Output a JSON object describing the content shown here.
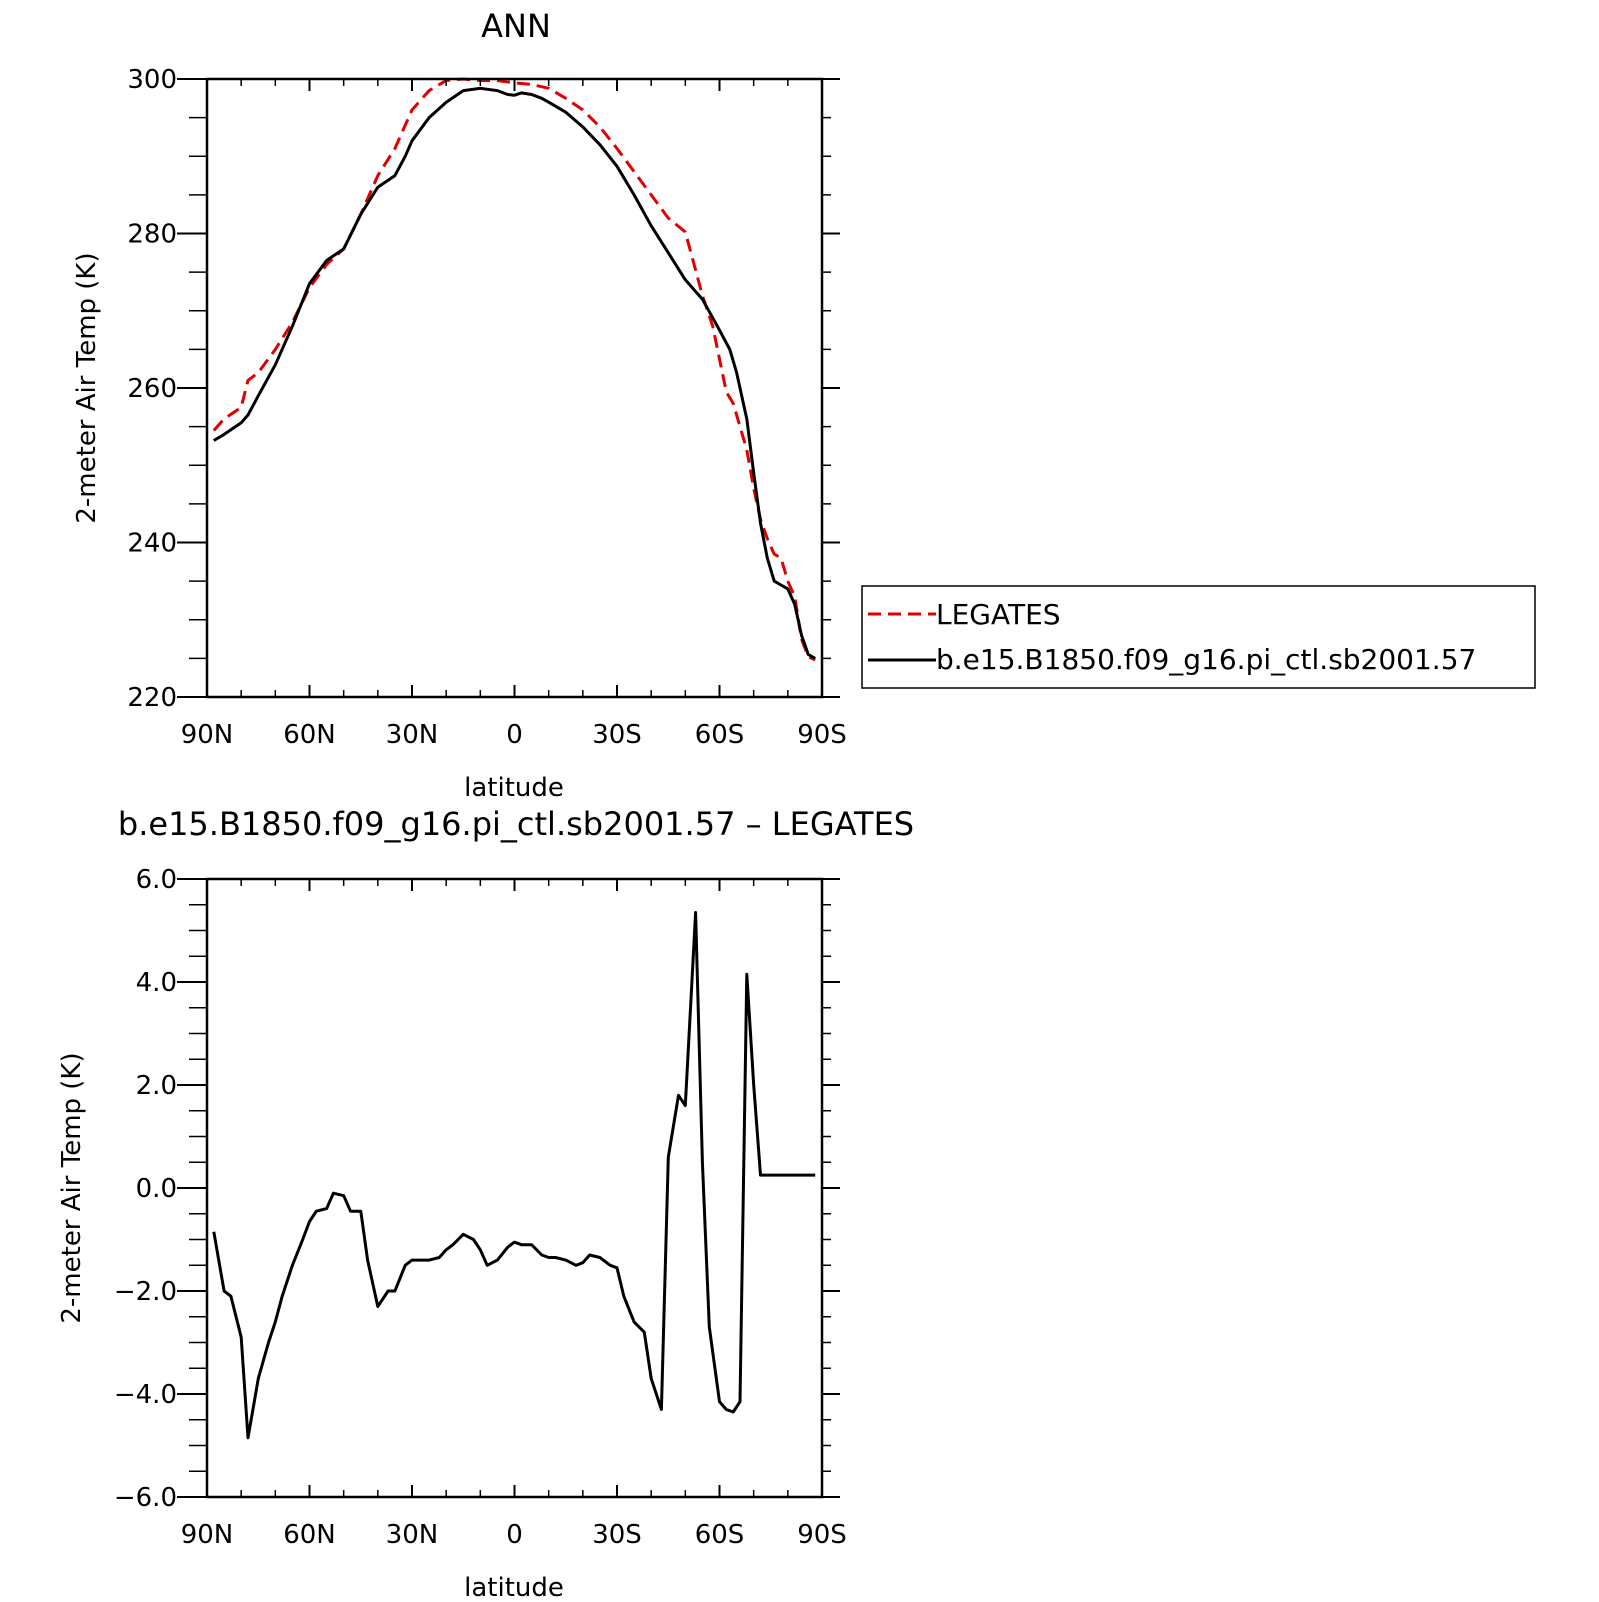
{
  "chart_data": [
    {
      "type": "line",
      "title": "ANN",
      "xlabel": "latitude",
      "ylabel": "2-meter Air Temp (K)",
      "xlim": [
        90,
        -90
      ],
      "ylim": [
        220,
        300
      ],
      "xticks": [
        90,
        60,
        30,
        0,
        -30,
        -60,
        -90
      ],
      "xtick_labels": [
        "90N",
        "60N",
        "30N",
        "0",
        "30S",
        "60S",
        "90S"
      ],
      "yticks": [
        220,
        240,
        260,
        280,
        300
      ],
      "ytick_labels": [
        "220",
        "240",
        "260",
        "280",
        "300"
      ],
      "legend_position": "right-outside",
      "series": [
        {
          "name": "LEGATES",
          "color": "#e00000",
          "style": "dashed",
          "x": [
            88,
            85,
            80,
            78,
            75,
            70,
            65,
            60,
            55,
            50,
            45,
            40,
            35,
            30,
            25,
            20,
            15,
            10,
            5,
            0,
            -5,
            -10,
            -15,
            -20,
            -25,
            -30,
            -35,
            -40,
            -45,
            -50,
            -55,
            -58,
            -62,
            -64,
            -66,
            -68,
            -70,
            -72,
            -74,
            -76,
            -78,
            -80,
            -82,
            -84,
            -86,
            -88
          ],
          "y": [
            254.5,
            256,
            257.5,
            261,
            262,
            265,
            268.5,
            273,
            276,
            278,
            282.5,
            287.5,
            291,
            296,
            298.5,
            299.8,
            300,
            299.8,
            299.8,
            299.5,
            299.3,
            298.8,
            297.5,
            296,
            293.8,
            291,
            288,
            285,
            282,
            280.2,
            272,
            268,
            259.5,
            258,
            255,
            252,
            247,
            243,
            240.5,
            238.5,
            238,
            235,
            233,
            227.5,
            225.2,
            224.8
          ]
        },
        {
          "name": "b.e15.B1850.f09_g16.pi_ctl.sb2001.57",
          "color": "#000000",
          "style": "solid",
          "x": [
            88,
            85,
            80,
            78,
            75,
            70,
            65,
            60,
            55,
            50,
            45,
            40,
            35,
            32,
            30,
            25,
            20,
            15,
            10,
            5,
            2,
            0,
            -2,
            -5,
            -8,
            -10,
            -15,
            -20,
            -25,
            -30,
            -35,
            -40,
            -45,
            -50,
            -55,
            -60,
            -63,
            -65,
            -68,
            -70,
            -72,
            -74,
            -76,
            -78,
            -80,
            -82,
            -84,
            -86,
            -88
          ],
          "y": [
            253.2,
            254,
            255.5,
            256.5,
            259,
            263,
            268,
            273.5,
            276.5,
            278,
            282.5,
            286,
            287.5,
            290,
            292,
            295,
            297,
            298.5,
            298.8,
            298.5,
            298,
            297.9,
            298.2,
            298,
            297.5,
            297,
            295.7,
            293.8,
            291.5,
            288.7,
            285,
            281,
            277.5,
            274,
            271.5,
            267.5,
            265,
            262,
            256,
            249,
            242.5,
            238,
            235,
            234.5,
            234,
            232,
            228,
            225.5,
            225
          ]
        }
      ]
    },
    {
      "type": "line",
      "title": "b.e15.B1850.f09_g16.pi_ctl.sb2001.57 – LEGATES",
      "xlabel": "latitude",
      "ylabel": "2-meter Air Temp (K)",
      "xlim": [
        90,
        -90
      ],
      "ylim": [
        -6,
        6
      ],
      "xticks": [
        90,
        60,
        30,
        0,
        -30,
        -60,
        -90
      ],
      "xtick_labels": [
        "90N",
        "60N",
        "30N",
        "0",
        "30S",
        "60S",
        "90S"
      ],
      "yticks": [
        -6,
        -4,
        -2,
        0,
        2,
        4,
        6
      ],
      "ytick_labels": [
        "−6.0",
        "−4.0",
        "−2.0",
        "0.0",
        "2.0",
        "4.0",
        "6.0"
      ],
      "series": [
        {
          "color": "#000000",
          "style": "solid",
          "x": [
            88,
            85,
            83,
            80,
            78,
            75,
            72,
            70,
            68,
            65,
            62,
            60,
            58,
            55,
            53,
            50,
            48,
            45,
            43,
            40,
            37,
            35,
            32,
            30,
            28,
            25,
            22,
            20,
            18,
            15,
            12,
            10,
            8,
            5,
            2,
            0,
            -2,
            -5,
            -8,
            -10,
            -12,
            -15,
            -18,
            -20,
            -22,
            -25,
            -28,
            -30,
            -32,
            -35,
            -38,
            -40,
            -43,
            -45,
            -48,
            -50,
            -53,
            -55,
            -57,
            -60,
            -62,
            -64,
            -66,
            -68,
            -70,
            -72,
            -74,
            -76,
            -78,
            -80,
            -82,
            -84,
            -86,
            -88
          ],
          "y": [
            -0.85,
            -2.0,
            -2.1,
            -2.9,
            -4.85,
            -3.7,
            -3.0,
            -2.6,
            -2.1,
            -1.5,
            -1.0,
            -0.65,
            -0.45,
            -0.4,
            -0.1,
            -0.15,
            -0.45,
            -0.45,
            -1.4,
            -2.3,
            -2.0,
            -2.0,
            -1.5,
            -1.4,
            -1.4,
            -1.4,
            -1.35,
            -1.2,
            -1.1,
            -0.9,
            -1.0,
            -1.2,
            -1.5,
            -1.4,
            -1.15,
            -1.05,
            -1.1,
            -1.1,
            -1.3,
            -1.35,
            -1.35,
            -1.4,
            -1.5,
            -1.45,
            -1.3,
            -1.35,
            -1.5,
            -1.55,
            -2.1,
            -2.6,
            -2.8,
            -3.7,
            -4.3,
            0.6,
            1.8,
            1.6,
            5.35,
            0.5,
            -2.7,
            -4.15,
            -4.3,
            -4.35,
            -4.15,
            4.15,
            2.0,
            0.25,
            0.25,
            0.25,
            0.25,
            0.25,
            0.25,
            0.25,
            0.25,
            0.25
          ]
        }
      ]
    }
  ],
  "legend": {
    "entries": [
      {
        "label": "LEGATES",
        "color": "#e00000",
        "style": "dashed"
      },
      {
        "label": "b.e15.B1850.f09_g16.pi_ctl.sb2001.57",
        "color": "#000000",
        "style": "solid"
      }
    ]
  }
}
